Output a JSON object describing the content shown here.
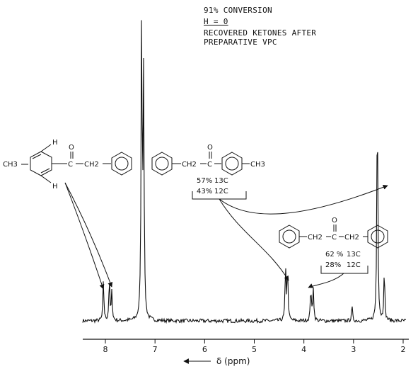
{
  "annotations": {
    "conversion": "91% CONVERSION",
    "h_value": "H = 0",
    "recovered_line1": "RECOVERED KETONES AFTER",
    "recovered_line2": "PREPARATIVE VPC"
  },
  "compounds": {
    "left": {
      "ch3": "CH3",
      "h_top": "H",
      "h_bottom": "H",
      "carbonyl_o": "O",
      "carbonyl_c": "C",
      "ch2": "CH2"
    },
    "middle": {
      "ch2": "CH2",
      "carbonyl_o": "O",
      "carbonyl_c": "C",
      "ch3": "CH3",
      "pct_13c": "57%",
      "label_13c": "13C",
      "pct_12c": "43%",
      "label_12c": "12C"
    },
    "right": {
      "ch2_left": "CH2",
      "carbonyl_o": "O",
      "carbonyl_c": "C",
      "ch2_right": "CH2",
      "pct_13c": "62 %",
      "label_13c": "13C",
      "pct_12c": "28%",
      "label_12c": "12C"
    }
  },
  "chart_data": {
    "type": "line",
    "title": "",
    "xlabel": "δ (ppm)",
    "ylabel": "",
    "x_reversed": true,
    "xlim": [
      8.55,
      2.0
    ],
    "ylim": [
      0,
      100
    ],
    "x_ticks": [
      8,
      7,
      6,
      5,
      4,
      3,
      2
    ],
    "x_tick_labels": [
      "8",
      "7",
      "6",
      "5",
      "4",
      "3",
      "2"
    ],
    "grid": false,
    "baseline": 2.0,
    "peaks": [
      {
        "ppm": 8.04,
        "height": 14.5
      },
      {
        "ppm": 7.92,
        "height": 15.0
      },
      {
        "ppm": 7.87,
        "height": 11.0
      },
      {
        "ppm": 7.27,
        "height": 98.0
      },
      {
        "ppm": 7.23,
        "height": 78.0
      },
      {
        "ppm": 4.37,
        "height": 18.5
      },
      {
        "ppm": 4.33,
        "height": 18.5
      },
      {
        "ppm": 3.86,
        "height": 12.5
      },
      {
        "ppm": 3.81,
        "height": 12.5
      },
      {
        "ppm": 3.03,
        "height": 6.5
      },
      {
        "ppm": 2.52,
        "height": 74.0
      },
      {
        "ppm": 2.38,
        "height": 18.0
      }
    ]
  }
}
